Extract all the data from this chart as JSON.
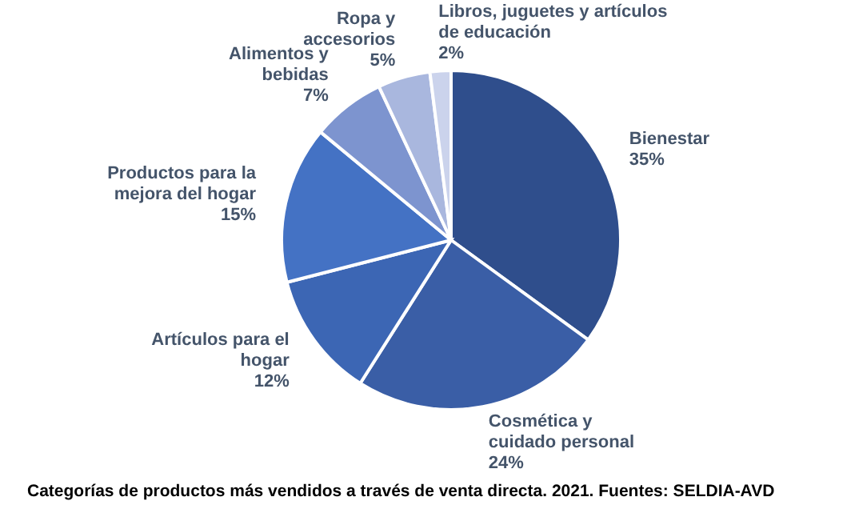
{
  "chart_data": {
    "type": "pie",
    "title": "Categorías de productos más vendidos a través de venta directa. 2021. Fuentes: SELDIA-AVD",
    "categories": [
      "Bienestar",
      "Cosmética y\ncuidado personal",
      "Artículos para el\nhogar",
      "Productos para la\nmejora del hogar",
      "Alimentos y\nbebidas",
      "Ropa y\naccesorios",
      "Libros, juguetes y artículos\nde educación"
    ],
    "values": [
      35,
      24,
      12,
      15,
      7,
      5,
      2
    ],
    "value_labels": [
      "35%",
      "24%",
      "12%",
      "15%",
      "7%",
      "5%",
      "2%"
    ],
    "colors": [
      "#2f4e8c",
      "#3a5ea6",
      "#3c66b4",
      "#4472c4",
      "#7d94cf",
      "#a9b7de",
      "#cbd3ec"
    ],
    "legend": false
  }
}
